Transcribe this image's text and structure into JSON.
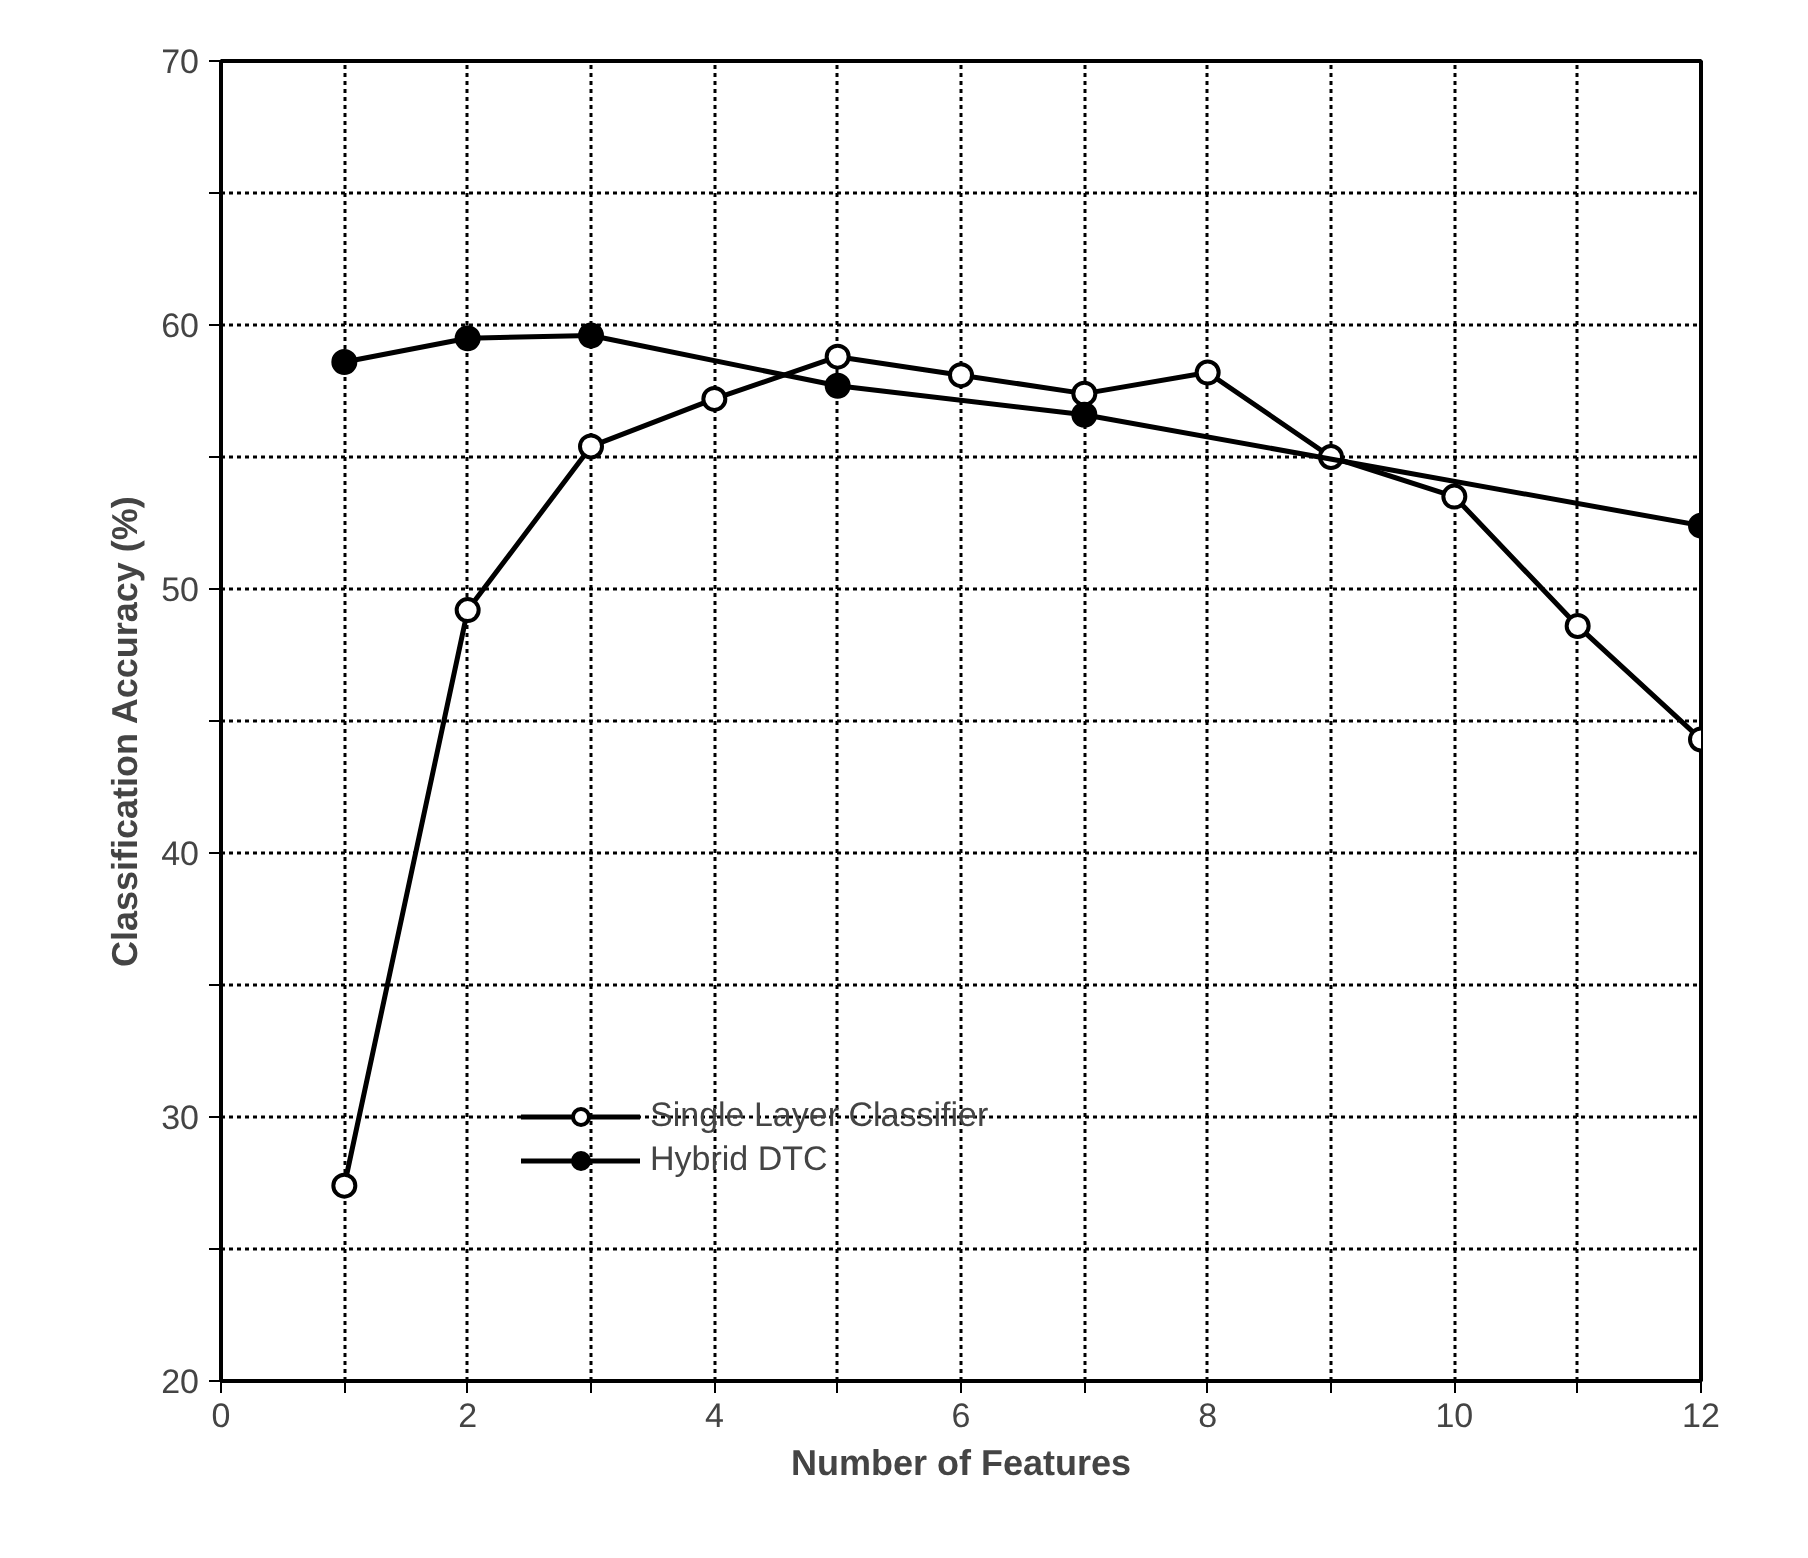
{
  "chart_data": {
    "type": "line",
    "xlabel": "Number of Features",
    "ylabel": "Classification  Accuracy  (%)",
    "xlim": [
      0,
      12
    ],
    "ylim": [
      20,
      70
    ],
    "xticks": [
      0,
      {
        "value": 1,
        "label": null
      },
      2,
      {
        "value": 3,
        "label": null
      },
      4,
      {
        "value": 5,
        "label": null
      },
      6,
      {
        "value": 7,
        "label": null
      },
      8,
      {
        "value": 9,
        "label": null
      },
      10,
      {
        "value": 11,
        "label": null
      },
      12
    ],
    "yticks": [
      20,
      {
        "value": 25,
        "label": null
      },
      30,
      {
        "value": 35,
        "label": null
      },
      40,
      {
        "value": 45,
        "label": null
      },
      50,
      {
        "value": 55,
        "label": null
      },
      60,
      {
        "value": 65,
        "label": null
      },
      70
    ],
    "grid": true,
    "legend": "bottom left",
    "marker": "circle",
    "line_style": "solid",
    "series": [
      {
        "name": "Single Layer Classifier",
        "color": "#000000",
        "x": [
          1,
          2,
          3,
          4,
          5,
          6,
          7,
          8,
          9,
          10,
          11,
          12
        ],
        "values": [
          27.4,
          49.2,
          55.4,
          57.2,
          58.8,
          58.1,
          57.4,
          58.2,
          55.0,
          53.5,
          48.6,
          44.3
        ]
      },
      {
        "name": "Hybrid DTC",
        "color": "#000000",
        "x": [
          1,
          2,
          3,
          5,
          7,
          12
        ],
        "values": [
          58.6,
          59.5,
          59.6,
          57.7,
          56.6,
          52.4
        ]
      }
    ]
  }
}
